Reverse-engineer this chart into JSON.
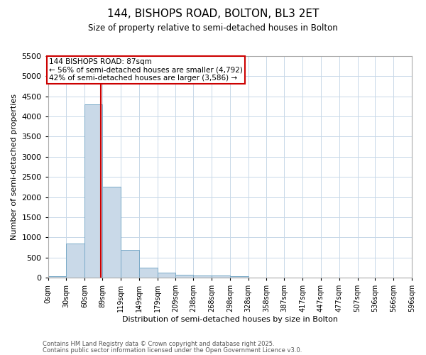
{
  "title": "144, BISHOPS ROAD, BOLTON, BL3 2ET",
  "subtitle": "Size of property relative to semi-detached houses in Bolton",
  "xlabel": "Distribution of semi-detached houses by size in Bolton",
  "ylabel": "Number of semi-detached properties",
  "bin_labels": [
    "0sqm",
    "30sqm",
    "60sqm",
    "89sqm",
    "119sqm",
    "149sqm",
    "179sqm",
    "209sqm",
    "238sqm",
    "268sqm",
    "298sqm",
    "328sqm",
    "358sqm",
    "387sqm",
    "417sqm",
    "447sqm",
    "477sqm",
    "507sqm",
    "536sqm",
    "566sqm",
    "596sqm"
  ],
  "bin_edges": [
    0,
    30,
    60,
    89,
    119,
    149,
    179,
    209,
    238,
    268,
    298,
    328,
    358,
    387,
    417,
    447,
    477,
    507,
    536,
    566,
    596
  ],
  "bar_values": [
    30,
    850,
    4300,
    2250,
    680,
    250,
    120,
    70,
    60,
    50,
    30,
    0,
    0,
    0,
    0,
    0,
    0,
    0,
    0,
    0
  ],
  "bar_color": "#c9d9e8",
  "bar_edge_color": "#7aaac8",
  "property_size": 87,
  "red_line_color": "#cc0000",
  "annotation_line1": "144 BISHOPS ROAD: 87sqm",
  "annotation_line2": "← 56% of semi-detached houses are smaller (4,792)",
  "annotation_line3": "42% of semi-detached houses are larger (3,586) →",
  "annotation_box_color": "#ffffff",
  "annotation_box_edge": "#cc0000",
  "ylim": [
    0,
    5500
  ],
  "yticks": [
    0,
    500,
    1000,
    1500,
    2000,
    2500,
    3000,
    3500,
    4000,
    4500,
    5000,
    5500
  ],
  "background_color": "#ffffff",
  "grid_color": "#c8d8e8",
  "footnote1": "Contains HM Land Registry data © Crown copyright and database right 2025.",
  "footnote2": "Contains public sector information licensed under the Open Government Licence v3.0."
}
